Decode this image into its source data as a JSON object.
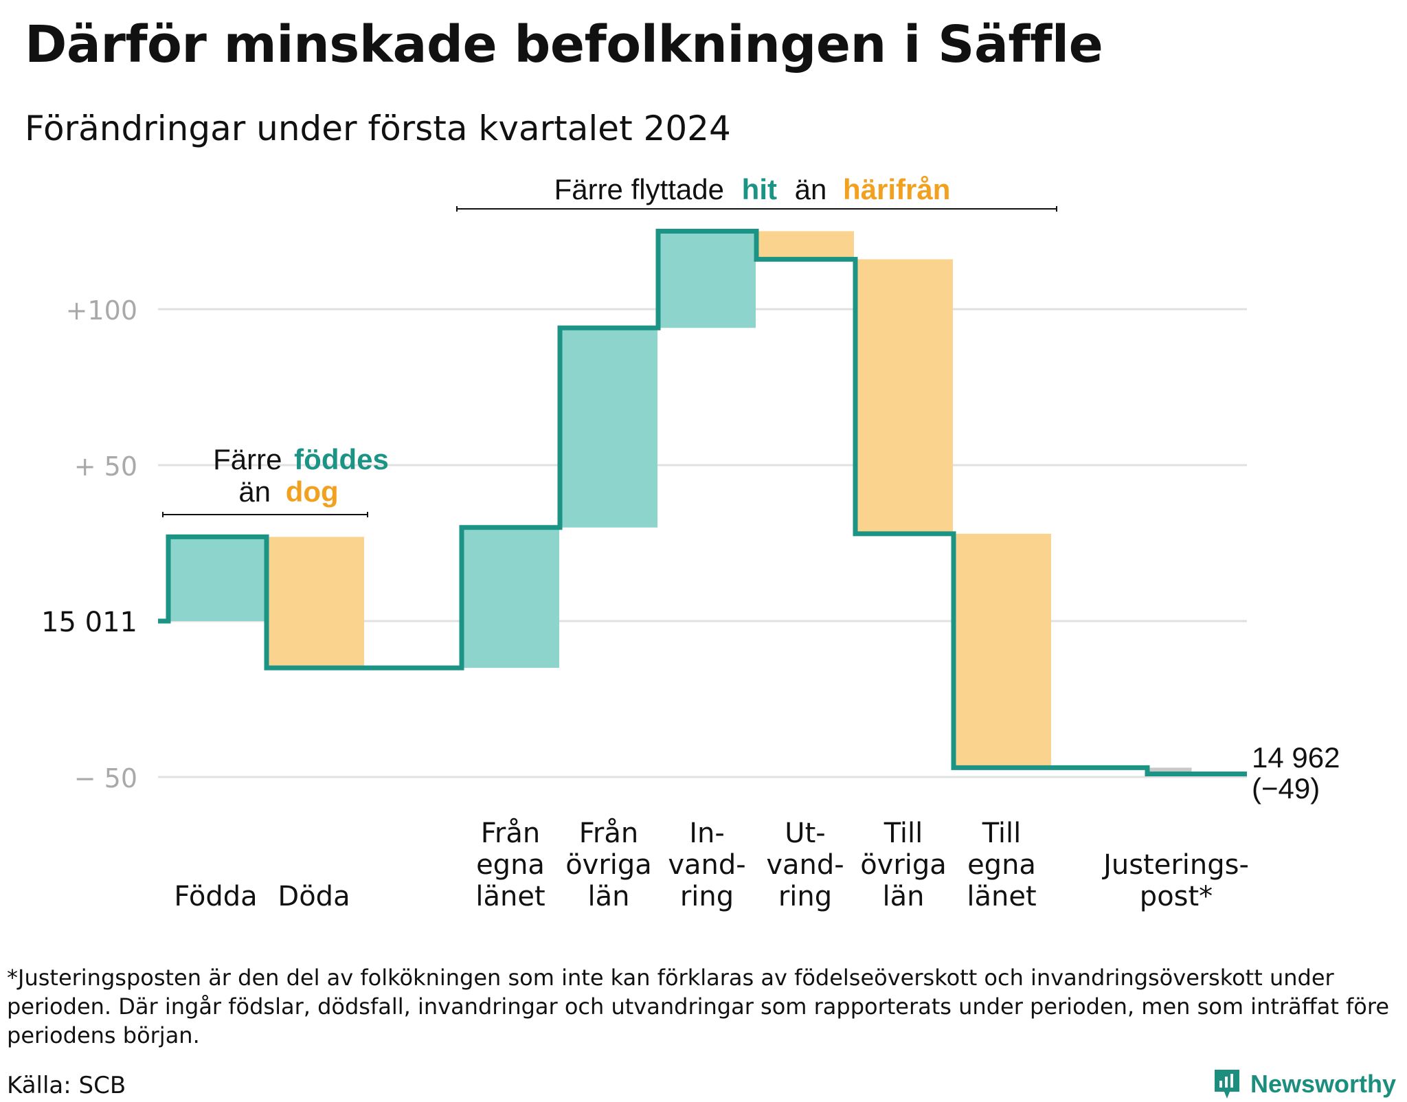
{
  "title": "Därför minskade befolkningen i Säffle",
  "subtitle": "Förändringar under första kvartalet 2024",
  "footnote": "*Justeringsposten är den del av folkökningen som inte kan förklaras av födelseöverskott och invandringsöverskott under perioden. Där ingår födslar, dödsfall, invandringar och utvandringar som rapporterats under perioden, men som inträffat före periodens början.",
  "source": "Källa: SCB",
  "brand": "Newsworthy",
  "colors": {
    "positive": "#8dd5cc",
    "negative": "#fad48f",
    "adjustment": "#c8c8c8",
    "line": "#1c9485",
    "teal_text": "#1c9485",
    "orange_text": "#f2a01f",
    "grid": "#e0e0e0",
    "tick": "#a9a9a9"
  },
  "annotations": {
    "births": {
      "line1_prefix": "Färre",
      "line1_highlight": "föddes",
      "line2_prefix": "än",
      "line2_highlight": "dog"
    },
    "migration": {
      "prefix": "Färre flyttade",
      "highlight1": "hit",
      "middle": "än",
      "highlight2": "härifrån"
    }
  },
  "end_label": {
    "value": "14 962",
    "change": "(−49)"
  },
  "chart_data": {
    "type": "waterfall",
    "title": "Därför minskade befolkningen i Säffle",
    "subtitle": "Förändringar under första kvartalet 2024",
    "start_value": 15011,
    "start_label": "15  011",
    "end_value": 14962,
    "end_change": -49,
    "categories": [
      [
        "Födda"
      ],
      [
        "Döda"
      ],
      [
        "Från",
        "egna",
        "länet"
      ],
      [
        "Från",
        "övriga",
        "län"
      ],
      [
        "In-",
        "vand-",
        "ring"
      ],
      [
        "Ut-",
        "vand-",
        "ring"
      ],
      [
        "Till",
        "övriga",
        "län"
      ],
      [
        "Till",
        "egna",
        "länet"
      ],
      [
        "Justerings-",
        "post*"
      ]
    ],
    "values": [
      27,
      -42,
      45,
      64,
      31,
      -9,
      -88,
      -75,
      -2
    ],
    "value_kinds": [
      "positive",
      "negative",
      "positive",
      "positive",
      "positive",
      "negative",
      "negative",
      "negative",
      "adjustment"
    ],
    "yticks": [
      {
        "value": 100,
        "label": "+100"
      },
      {
        "value": 50,
        "label": "+  50"
      },
      {
        "value": 0,
        "label": "15  011"
      },
      {
        "value": -50,
        "label": "−  50"
      }
    ],
    "ylim": [
      -55,
      125
    ],
    "grid": true
  }
}
